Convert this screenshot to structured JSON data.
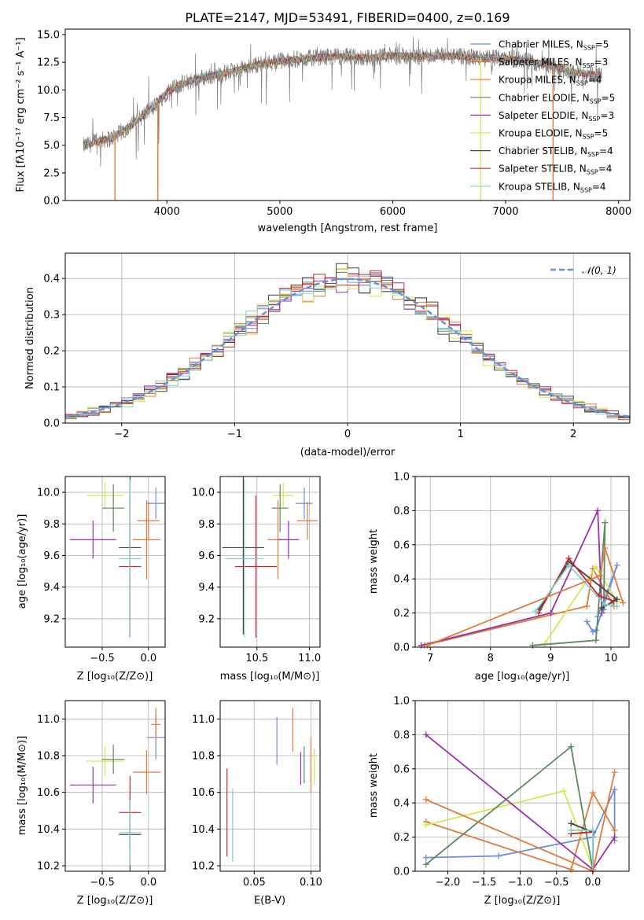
{
  "colors": {
    "chabrier_miles": "#6a8fdb",
    "salpeter_miles": "#e07b39",
    "kroupa_miles": "#e07b39",
    "chabrier_elodie": "#5a8a5e",
    "salpeter_elodie": "#9b2fae",
    "kroupa_elodie": "#d6e84f",
    "chabrier_stelib": "#444444",
    "salpeter_stelib": "#c0282d",
    "kroupa_stelib": "#7fd1d1"
  },
  "chart_data": [
    {
      "id": "spectrum",
      "type": "line",
      "title": "PLATE=2147, MJD=53491, FIBERID=0400, z=0.169",
      "xlabel": "wavelength [Angstrom, rest frame]",
      "ylabel": "Flux [fλ10⁻¹⁷ erg cm⁻² s⁻¹ A⁻¹]",
      "xlim": [
        3100,
        8100
      ],
      "ylim": [
        0,
        15.5
      ],
      "xticks": [
        4000,
        5000,
        6000,
        7000,
        8000
      ],
      "yticks": [
        0.0,
        2.5,
        5.0,
        7.5,
        10.0,
        12.5,
        15.0
      ],
      "data_envelope": {
        "x": [
          3260,
          3400,
          3500,
          3600,
          3700,
          3800,
          3900,
          4000,
          4100,
          4200,
          4400,
          4600,
          4800,
          5000,
          5200,
          5400,
          5600,
          5800,
          6000,
          6200,
          6400,
          6600,
          6800,
          7000,
          7200,
          7400,
          7600,
          7850
        ],
        "y": [
          4.9,
          5.4,
          5.6,
          6.2,
          6.9,
          7.8,
          8.6,
          9.8,
          10.4,
          10.8,
          11.3,
          11.7,
          12.3,
          12.6,
          12.8,
          13.0,
          13.0,
          12.9,
          13.1,
          13.0,
          13.1,
          13.0,
          12.9,
          12.9,
          12.6,
          12.2,
          11.6,
          11.3
        ]
      },
      "series": [
        {
          "name": "Chabrier MILES, N_SSP=5",
          "label_main": "Chabrier MILES, N",
          "label_sub": "SSP",
          "label_end": "=5",
          "color_key": "chabrier_miles"
        },
        {
          "name": "Salpeter MILES, N_SSP=3",
          "label_main": "Salpeter MILES, N",
          "label_sub": "SSP",
          "label_end": "=3",
          "color_key": "salpeter_miles"
        },
        {
          "name": "Kroupa MILES, N_SSP=4",
          "label_main": "Kroupa MILES, N",
          "label_sub": "SSP",
          "label_end": "=4",
          "color_key": "kroupa_miles"
        },
        {
          "name": "Chabrier ELODIE, N_SSP=5",
          "label_main": "Chabrier ELODIE, N",
          "label_sub": "SSP",
          "label_end": "=5",
          "color_key": "chabrier_elodie"
        },
        {
          "name": "Salpeter ELODIE, N_SSP=3",
          "label_main": "Salpeter ELODIE, N",
          "label_sub": "SSP",
          "label_end": "=3",
          "color_key": "salpeter_elodie"
        },
        {
          "name": "Kroupa ELODIE, N_SSP=5",
          "label_main": "Kroupa ELODIE, N",
          "label_sub": "SSP",
          "label_end": "=5",
          "color_key": "kroupa_elodie"
        },
        {
          "name": "Chabrier STELIB, N_SSP=4",
          "label_main": "Chabrier STELIB, N",
          "label_sub": "SSP",
          "label_end": "=4",
          "color_key": "chabrier_stelib"
        },
        {
          "name": "Salpeter STELIB, N_SSP=4",
          "label_main": "Salpeter STELIB, N",
          "label_sub": "SSP",
          "label_end": "=4",
          "color_key": "salpeter_stelib"
        },
        {
          "name": "Kroupa STELIB, N_SSP=4",
          "label_main": "Kroupa STELIB, N",
          "label_sub": "SSP",
          "label_end": "=4",
          "color_key": "kroupa_stelib"
        }
      ],
      "vertical_spikes": [
        {
          "x": 3540,
          "color_key": "salpeter_miles"
        },
        {
          "x": 3920,
          "color_key": "kroupa_miles"
        },
        {
          "x": 6780,
          "color_key": "kroupa_elodie"
        },
        {
          "x": 7420,
          "color_key": "salpeter_miles"
        }
      ],
      "legend": "upper-right"
    },
    {
      "id": "residuals",
      "type": "line",
      "xlabel": "(data-model)/error",
      "ylabel": "Normed distribution",
      "xlim": [
        -2.5,
        2.5
      ],
      "ylim": [
        0,
        0.47
      ],
      "xticks": [
        -2,
        -1,
        0,
        1,
        2
      ],
      "yticks": [
        0.0,
        0.1,
        0.2,
        0.3,
        0.4
      ],
      "bin_width": 0.1,
      "reference_curve": {
        "name": "N(0,1)",
        "label": "𝒩(0, 1)",
        "color_key": "chabrier_miles",
        "style": "dashed"
      },
      "grid": true,
      "legend": "upper-right"
    },
    {
      "id": "age_vs_Z",
      "type": "scatter",
      "xlabel": "Z [log₁₀(Z/Z⊙)]",
      "ylabel": "age  [log₁₀(age/yr)]",
      "xlim": [
        -0.9,
        0.18
      ],
      "ylim": [
        9.02,
        10.1
      ],
      "xticks": [
        -0.5,
        0.0
      ],
      "yticks": [
        9.2,
        9.4,
        9.6,
        9.8,
        10.0
      ],
      "points": [
        {
          "color_key": "chabrier_miles",
          "x": 0.08,
          "y": 9.93,
          "xerr": 0.1,
          "yerr": 0.1
        },
        {
          "color_key": "salpeter_miles",
          "x": -0.02,
          "y": 9.7,
          "xerr": 0.15,
          "yerr": 0.25
        },
        {
          "color_key": "kroupa_elodie",
          "x": -0.47,
          "y": 9.98,
          "xerr": 0.2,
          "yerr": 0.08
        },
        {
          "color_key": "chabrier_elodie",
          "x": -0.38,
          "y": 9.9,
          "xerr": 0.12,
          "yerr": 0.15
        },
        {
          "color_key": "salpeter_elodie",
          "x": -0.6,
          "y": 9.7,
          "xerr": 0.25,
          "yerr": 0.12
        },
        {
          "color_key": "chabrier_stelib",
          "x": -0.2,
          "y": 9.65,
          "xerr": 0.12,
          "yerr": 0.55
        },
        {
          "color_key": "salpeter_stelib",
          "x": -0.2,
          "y": 9.53,
          "xerr": 0.12,
          "yerr": 0.45
        },
        {
          "color_key": "kroupa_stelib",
          "x": -0.2,
          "y": 9.58,
          "xerr": 0.12,
          "yerr": 0.5
        },
        {
          "color_key": "kroupa_miles",
          "x": 0.0,
          "y": 9.82,
          "xerr": 0.12,
          "yerr": 0.12
        }
      ]
    },
    {
      "id": "age_vs_mass",
      "type": "scatter",
      "xlabel": "mass [log₁₀(M/M⊙)]",
      "ylabel": "",
      "xlim": [
        10.15,
        11.1
      ],
      "ylim": [
        9.02,
        10.1
      ],
      "xticks": [
        10.5,
        11.0
      ],
      "yticks": [
        9.2,
        9.4,
        9.6,
        9.8,
        10.0
      ],
      "points": [
        {
          "color_key": "chabrier_miles",
          "x": 10.95,
          "y": 9.93,
          "xerr": 0.08,
          "yerr": 0.1
        },
        {
          "color_key": "salpeter_miles",
          "x": 10.7,
          "y": 9.7,
          "xerr": 0.1,
          "yerr": 0.25
        },
        {
          "color_key": "kroupa_elodie",
          "x": 10.75,
          "y": 9.98,
          "xerr": 0.1,
          "yerr": 0.08
        },
        {
          "color_key": "chabrier_elodie",
          "x": 10.72,
          "y": 9.9,
          "xerr": 0.08,
          "yerr": 0.15
        },
        {
          "color_key": "salpeter_elodie",
          "x": 10.8,
          "y": 9.7,
          "xerr": 0.1,
          "yerr": 0.12
        },
        {
          "color_key": "chabrier_stelib",
          "x": 10.37,
          "y": 9.65,
          "xerr": 0.2,
          "yerr": 0.55
        },
        {
          "color_key": "salpeter_stelib",
          "x": 10.49,
          "y": 9.53,
          "xerr": 0.2,
          "yerr": 0.45
        },
        {
          "color_key": "kroupa_stelib",
          "x": 10.38,
          "y": 9.58,
          "xerr": 0.18,
          "yerr": 0.5
        },
        {
          "color_key": "kroupa_miles",
          "x": 10.98,
          "y": 9.82,
          "xerr": 0.1,
          "yerr": 0.12
        }
      ]
    },
    {
      "id": "weight_vs_age",
      "type": "line",
      "xlabel": "age  [log₁₀(age/yr)]",
      "ylabel": "mass weight",
      "xlim": [
        6.75,
        10.3
      ],
      "ylim": [
        0,
        1.0
      ],
      "xticks": [
        7,
        8,
        9,
        10
      ],
      "yticks": [
        0.0,
        0.2,
        0.4,
        0.6,
        0.8,
        1.0
      ],
      "grid": true,
      "series": [
        {
          "color_key": "chabrier_miles",
          "x": [
            9.6,
            9.7,
            9.75,
            10.1,
            9.78
          ],
          "y": [
            0.15,
            0.09,
            0.1,
            0.48,
            0.18
          ]
        },
        {
          "color_key": "salpeter_miles",
          "x": [
            6.9,
            9.6,
            9.7,
            10.05
          ],
          "y": [
            0.01,
            0.24,
            0.46,
            0.24
          ]
        },
        {
          "color_key": "kroupa_elodie",
          "x": [
            8.7,
            8.9,
            9.75,
            10.1
          ],
          "y": [
            0.01,
            0.02,
            0.47,
            0.27
          ]
        },
        {
          "color_key": "chabrier_elodie",
          "x": [
            8.7,
            9.75,
            9.9,
            9.88
          ],
          "y": [
            0.01,
            0.04,
            0.73,
            0.22
          ]
        },
        {
          "color_key": "salpeter_elodie",
          "x": [
            6.85,
            9.0,
            9.78,
            9.85
          ],
          "y": [
            0.01,
            0.2,
            0.8,
            0.2
          ]
        },
        {
          "color_key": "chabrier_stelib",
          "x": [
            8.8,
            9.3,
            10.1,
            9.85
          ],
          "y": [
            0.22,
            0.5,
            0.28,
            0.23
          ]
        },
        {
          "color_key": "salpeter_stelib",
          "x": [
            8.8,
            9.3,
            9.8,
            10.05
          ],
          "y": [
            0.2,
            0.52,
            0.3,
            0.27
          ]
        },
        {
          "color_key": "kroupa_stelib",
          "x": [
            8.75,
            9.3,
            9.9,
            10.1
          ],
          "y": [
            0.21,
            0.48,
            0.25,
            0.24
          ]
        },
        {
          "color_key": "kroupa_miles",
          "x": [
            6.95,
            9.82,
            9.9,
            10.2
          ],
          "y": [
            0.01,
            0.42,
            0.58,
            0.26
          ]
        }
      ]
    },
    {
      "id": "mass_vs_Z",
      "type": "scatter",
      "xlabel": "Z [log₁₀(Z/Z⊙)]",
      "ylabel": "mass [log₁₀(M/M⊙)]",
      "xlim": [
        -0.9,
        0.18
      ],
      "ylim": [
        10.17,
        11.1
      ],
      "xticks": [
        -0.5,
        0.0
      ],
      "yticks": [
        10.2,
        10.4,
        10.6,
        10.8,
        11.0
      ],
      "points": [
        {
          "color_key": "chabrier_miles",
          "x": 0.08,
          "y": 10.9,
          "xerr": 0.1,
          "yerr": 0.12
        },
        {
          "color_key": "salpeter_miles",
          "x": -0.02,
          "y": 10.71,
          "xerr": 0.15,
          "yerr": 0.12
        },
        {
          "color_key": "kroupa_elodie",
          "x": -0.47,
          "y": 10.77,
          "xerr": 0.2,
          "yerr": 0.08
        },
        {
          "color_key": "chabrier_elodie",
          "x": -0.38,
          "y": 10.78,
          "xerr": 0.12,
          "yerr": 0.08
        },
        {
          "color_key": "salpeter_elodie",
          "x": -0.6,
          "y": 10.64,
          "xerr": 0.25,
          "yerr": 0.1
        },
        {
          "color_key": "chabrier_stelib",
          "x": -0.2,
          "y": 10.37,
          "xerr": 0.12,
          "yerr": 0.2
        },
        {
          "color_key": "salpeter_stelib",
          "x": -0.2,
          "y": 10.49,
          "xerr": 0.12,
          "yerr": 0.2
        },
        {
          "color_key": "kroupa_stelib",
          "x": -0.2,
          "y": 10.38,
          "xerr": 0.12,
          "yerr": 0.18
        },
        {
          "color_key": "kroupa_miles",
          "x": 0.08,
          "y": 10.97,
          "xerr": 0.05,
          "yerr": 0.09
        }
      ]
    },
    {
      "id": "mass_vs_ebv",
      "type": "scatter",
      "xlabel": "E(B-V)",
      "ylabel": "",
      "xlim": [
        0.02,
        0.108
      ],
      "ylim": [
        10.17,
        11.1
      ],
      "xticks": [
        0.05,
        0.1
      ],
      "yticks": [
        10.2,
        10.4,
        10.6,
        10.8,
        11.0
      ],
      "points": [
        {
          "color_key": "chabrier_miles",
          "x": 0.07,
          "y": 10.88,
          "xerr": 0,
          "yerr": 0.13
        },
        {
          "color_key": "kroupa_miles",
          "x": 0.084,
          "y": 10.94,
          "xerr": 0,
          "yerr": 0.12
        },
        {
          "color_key": "salpeter_elodie",
          "x": 0.091,
          "y": 10.73,
          "xerr": 0,
          "yerr": 0.09
        },
        {
          "color_key": "chabrier_elodie",
          "x": 0.094,
          "y": 10.75,
          "xerr": 0,
          "yerr": 0.1
        },
        {
          "color_key": "salpeter_miles",
          "x": 0.1,
          "y": 10.75,
          "xerr": 0,
          "yerr": 0.15
        },
        {
          "color_key": "kroupa_elodie",
          "x": 0.103,
          "y": 10.74,
          "xerr": 0,
          "yerr": 0.1
        },
        {
          "color_key": "salpeter_stelib",
          "x": 0.026,
          "y": 10.49,
          "xerr": 0,
          "yerr": 0.24
        },
        {
          "color_key": "kroupa_stelib",
          "x": 0.031,
          "y": 10.42,
          "xerr": 0,
          "yerr": 0.2
        }
      ]
    },
    {
      "id": "weight_vs_Z",
      "type": "line",
      "xlabel": "Z [log₁₀(Z/Z⊙)]",
      "ylabel": "mass weight",
      "xlim": [
        -2.45,
        0.5
      ],
      "ylim": [
        0,
        1.0
      ],
      "xticks": [
        -2.0,
        -1.5,
        -1.0,
        -0.5,
        0.0
      ],
      "yticks": [
        0.0,
        0.2,
        0.4,
        0.6,
        0.8,
        1.0
      ],
      "grid": true,
      "series": [
        {
          "color_key": "chabrier_miles",
          "x": [
            -2.3,
            -1.3,
            0.0,
            0.3,
            0.3
          ],
          "y": [
            0.08,
            0.09,
            0.2,
            0.48,
            0.18
          ]
        },
        {
          "color_key": "salpeter_miles",
          "x": [
            -2.3,
            -0.3,
            0.0,
            0.3
          ],
          "y": [
            0.29,
            0.01,
            0.46,
            0.24
          ]
        },
        {
          "color_key": "kroupa_elodie",
          "x": [
            -2.3,
            -0.4,
            0.0
          ],
          "y": [
            0.27,
            0.47,
            0.02
          ]
        },
        {
          "color_key": "chabrier_elodie",
          "x": [
            -2.3,
            -0.3,
            0.0
          ],
          "y": [
            0.04,
            0.73,
            0.01
          ]
        },
        {
          "color_key": "salpeter_elodie",
          "x": [
            -2.3,
            0.0,
            0.3
          ],
          "y": [
            0.8,
            0.01,
            0.2
          ]
        },
        {
          "color_key": "chabrier_stelib",
          "x": [
            -0.3,
            0.0,
            0.0
          ],
          "y": [
            0.28,
            0.23,
            0.01
          ]
        },
        {
          "color_key": "salpeter_stelib",
          "x": [
            -0.3,
            0.0,
            0.0
          ],
          "y": [
            0.22,
            0.23,
            0.01
          ]
        },
        {
          "color_key": "kroupa_stelib",
          "x": [
            -0.3,
            0.0,
            0.0
          ],
          "y": [
            0.24,
            0.24,
            0.01
          ]
        },
        {
          "color_key": "kroupa_miles",
          "x": [
            -2.3,
            0.0,
            0.3
          ],
          "y": [
            0.42,
            0.0,
            0.58
          ]
        }
      ]
    }
  ]
}
